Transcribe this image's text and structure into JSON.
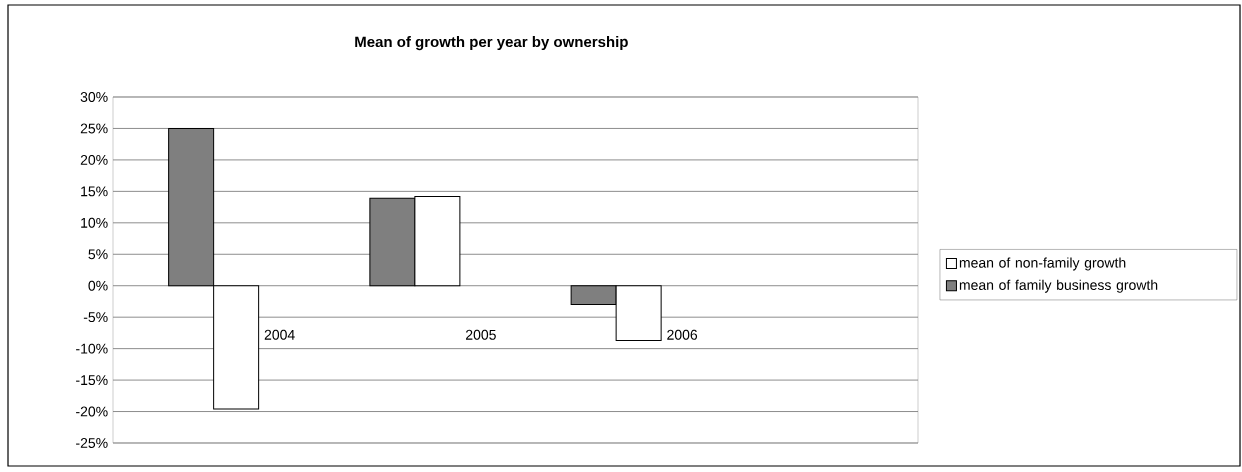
{
  "chart_data": {
    "type": "bar",
    "title": "Mean of growth per year by ownership",
    "categories": [
      "2004",
      "2005",
      "2006",
      null
    ],
    "series": [
      {
        "name": "mean of family business growth",
        "color": "#7f7f7f",
        "values": [
          25,
          13.9,
          -3,
          null
        ]
      },
      {
        "name": "mean of non-family growth",
        "color": "#ffffff",
        "values": [
          -19.6,
          14.2,
          -8.7,
          null
        ]
      }
    ],
    "ylim": [
      -25,
      30
    ],
    "yticks": [
      {
        "value": -25,
        "label": "-25%"
      },
      {
        "value": -20,
        "label": "-20%"
      },
      {
        "value": -15,
        "label": "-15%"
      },
      {
        "value": -10,
        "label": "-10%"
      },
      {
        "value": -5,
        "label": "-5%"
      },
      {
        "value": 0,
        "label": "0%"
      },
      {
        "value": 5,
        "label": "5%"
      },
      {
        "value": 10,
        "label": "10%"
      },
      {
        "value": 15,
        "label": "15%"
      },
      {
        "value": 20,
        "label": "20%"
      },
      {
        "value": 25,
        "label": "25%"
      },
      {
        "value": 30,
        "label": "30%"
      }
    ],
    "grid": "y",
    "legend": "right"
  }
}
